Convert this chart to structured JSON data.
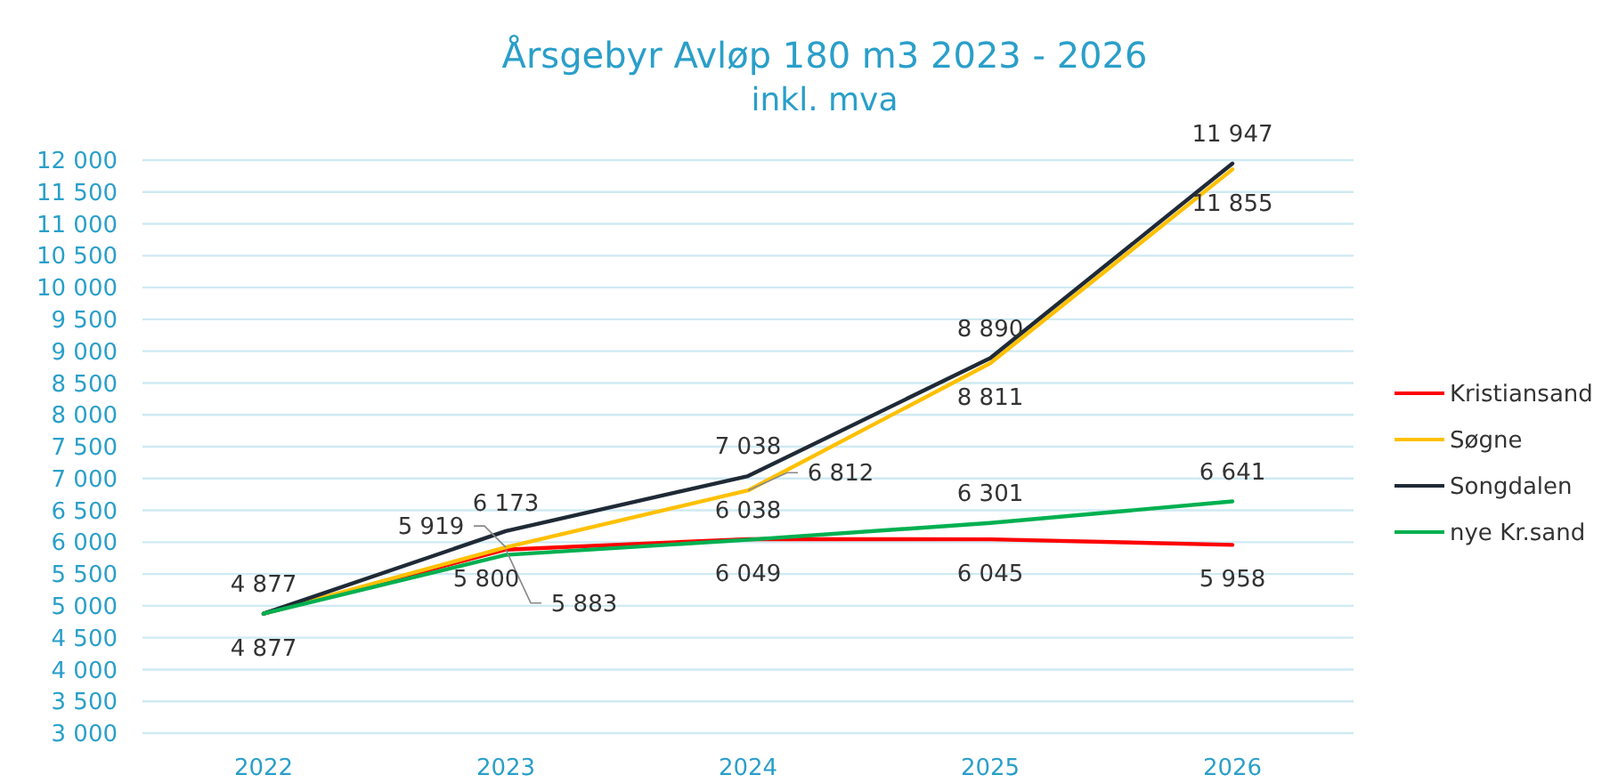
{
  "chart_data": {
    "type": "line",
    "title": "Årsgebyr Avløp 180 m3 2023 - 2026",
    "subtitle": "inkl. mva",
    "categories": [
      "2022",
      "2023",
      "2024",
      "2025",
      "2026"
    ],
    "series": [
      {
        "name": "Kristiansand",
        "color": "#ff0000",
        "values": [
          4877,
          5883,
          6049,
          6045,
          5958
        ],
        "value_labels": [
          "4 877",
          "5 883",
          "6 049",
          "6 045",
          "5 958"
        ]
      },
      {
        "name": "Søgne",
        "color": "#ffc000",
        "values": [
          4877,
          5919,
          6812,
          8811,
          11855
        ],
        "value_labels": [
          null,
          "5 919",
          "6 812",
          "8 811",
          "11 855"
        ]
      },
      {
        "name": "Songdalen",
        "color": "#1f2a36",
        "values": [
          4877,
          6173,
          7038,
          8890,
          11947
        ],
        "value_labels": [
          "4 877",
          "6 173",
          "7 038",
          "8 890",
          "11 947"
        ]
      },
      {
        "name": "nye Kr.sand",
        "color": "#00b050",
        "values": [
          4877,
          5800,
          6038,
          6301,
          6641
        ],
        "value_labels": [
          null,
          "5 800",
          "6 038",
          "6 301",
          "6 641"
        ]
      }
    ],
    "ylim": [
      3000,
      12000
    ],
    "yticks": [
      {
        "value": 3000,
        "label": "3 000"
      },
      {
        "value": 3500,
        "label": "3 500"
      },
      {
        "value": 4000,
        "label": "4 000"
      },
      {
        "value": 4500,
        "label": "4 500"
      },
      {
        "value": 5000,
        "label": "5 000"
      },
      {
        "value": 5500,
        "label": "5 500"
      },
      {
        "value": 6000,
        "label": "6 000"
      },
      {
        "value": 6500,
        "label": "6 500"
      },
      {
        "value": 7000,
        "label": "7 000"
      },
      {
        "value": 7500,
        "label": "7 500"
      },
      {
        "value": 8000,
        "label": "8 000"
      },
      {
        "value": 8500,
        "label": "8 500"
      },
      {
        "value": 9000,
        "label": "9 000"
      },
      {
        "value": 9500,
        "label": "9 500"
      },
      {
        "value": 10000,
        "label": "10 000"
      },
      {
        "value": 10500,
        "label": "10 500"
      },
      {
        "value": 11000,
        "label": "11 000"
      },
      {
        "value": 11500,
        "label": "11 500"
      },
      {
        "value": 12000,
        "label": "12 000"
      }
    ],
    "grid": "y",
    "legend": "right",
    "marker": "none",
    "line_style": "solid"
  }
}
